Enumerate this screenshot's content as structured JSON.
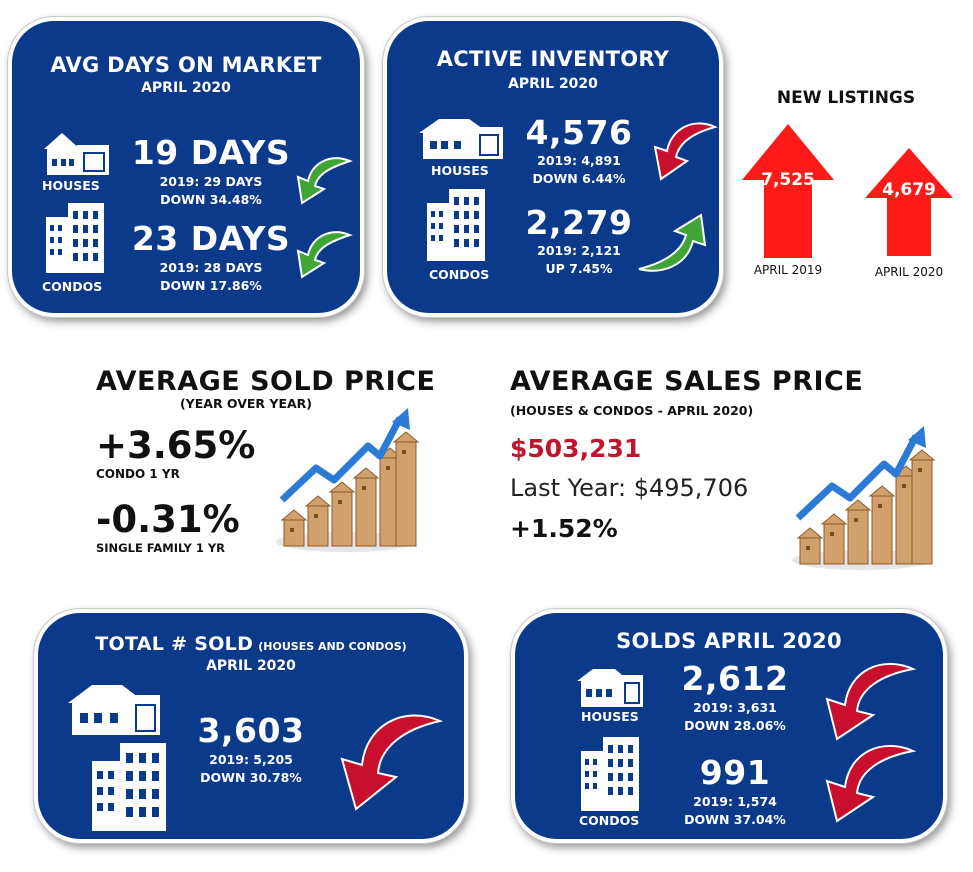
{
  "avg_days": {
    "title": "AVG DAYS ON MARKET",
    "period": "APRIL 2020",
    "houses_label": "HOUSES",
    "houses_value": "19 DAYS",
    "houses_prev": "2019: 29 DAYS",
    "houses_change": "DOWN 34.48%",
    "condos_label": "CONDOS",
    "condos_value": "23 DAYS",
    "condos_prev": "2019: 28 DAYS",
    "condos_change": "DOWN 17.86%"
  },
  "inventory": {
    "title": "ACTIVE INVENTORY",
    "period": "APRIL 2020",
    "houses_label": "HOUSES",
    "houses_value": "4,576",
    "houses_prev": "2019: 4,891",
    "houses_change": "DOWN 6.44%",
    "condos_label": "CONDOS",
    "condos_value": "2,279",
    "condos_prev": "2019: 2,121",
    "condos_change": "UP 7.45%"
  },
  "new_listings": {
    "title": "NEW LISTINGS",
    "items": [
      {
        "value": "7,525",
        "label": "APRIL 2019"
      },
      {
        "value": "4,679",
        "label": "APRIL 2020"
      }
    ]
  },
  "avg_sold": {
    "title": "AVERAGE SOLD PRICE",
    "subtitle": "(YEAR OVER YEAR)",
    "condo_value": "+3.65%",
    "condo_label": "CONDO 1 YR",
    "single_value": "-0.31%",
    "single_label": "SINGLE FAMILY 1 YR"
  },
  "avg_sales": {
    "title": "AVERAGE SALES PRICE",
    "subtitle": "(HOUSES & CONDOS - APRIL 2020)",
    "price": "$503,231",
    "last_year": "Last Year: $495,706",
    "change": "+1.52%"
  },
  "total_sold": {
    "title": "TOTAL # SOLD",
    "title_suffix": "(HOUSES AND CONDOS)",
    "period": "APRIL 2020",
    "value": "3,603",
    "prev": "2019: 5,205",
    "change": "DOWN 30.78%"
  },
  "solds": {
    "title": "SOLDS APRIL 2020",
    "houses_label": "HOUSES",
    "houses_value": "2,612",
    "houses_prev": "2019: 3,631",
    "houses_change": "DOWN 28.06%",
    "condos_label": "CONDOS",
    "condos_value": "991",
    "condos_prev": "2019: 1,574",
    "condos_change": "DOWN 37.04%"
  },
  "colors": {
    "panel": "#0c3a8a",
    "down_arrow_green": "#3fa535",
    "red_arrow": "#c8102e",
    "listing_arrow": "#ff1a1a",
    "price_red": "#c0152b"
  }
}
